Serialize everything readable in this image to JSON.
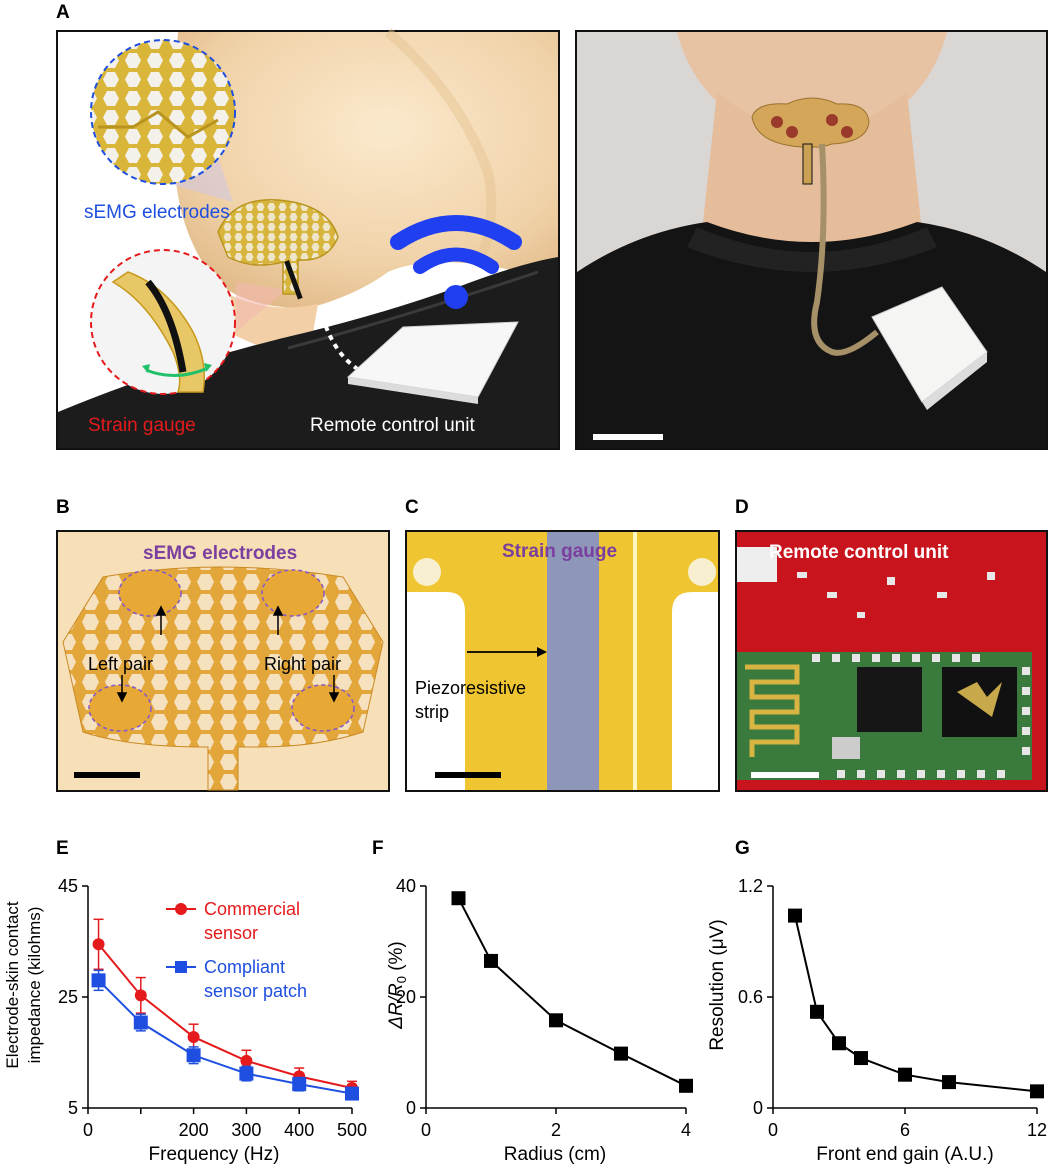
{
  "labels": {
    "a": "A",
    "b": "B",
    "c": "C",
    "d": "D",
    "e": "E",
    "f": "F",
    "g": "G"
  },
  "panel_a_left": {
    "semg": "sEMG electrodes",
    "strain": "Strain gauge",
    "remote": "Remote control unit"
  },
  "panel_b": {
    "title": "sEMG electrodes",
    "left_pair": "Left pair",
    "right_pair": "Right pair"
  },
  "panel_c": {
    "title": "Strain gauge",
    "strip_line1": "Piezoresistive",
    "strip_line2": "strip"
  },
  "panel_d": {
    "title": "Remote control unit"
  },
  "colors": {
    "red": "#e41a1c",
    "blue": "#1f4fe0",
    "purple": "#7b3fa0",
    "black": "#000000"
  },
  "chart_data": [
    {
      "type": "line",
      "x": [
        20,
        100,
        200,
        300,
        400,
        500
      ],
      "series": [
        {
          "name": "Commercial sensor",
          "name_line1": "Commercial",
          "name_line2": "sensor",
          "color": "#e41a1c",
          "marker": "circle",
          "values": [
            34.5,
            25.3,
            17.8,
            13.5,
            10.7,
            8.6
          ],
          "errors": [
            4.5,
            3.2,
            2.3,
            1.9,
            1.5,
            1.2
          ]
        },
        {
          "name": "Compliant sensor patch",
          "name_line1": "Compliant",
          "name_line2": "sensor patch",
          "color": "#1f4fe0",
          "marker": "square",
          "values": [
            28.0,
            20.4,
            14.5,
            11.2,
            9.3,
            7.6
          ],
          "errors": [
            1.8,
            1.5,
            1.5,
            1.3,
            1.2,
            1.0
          ]
        }
      ],
      "xlabel": "Frequency (Hz)",
      "ylabel_line1": "Electrode-skin contact",
      "ylabel_line2": "impedance (kilohms)",
      "xlim": [
        0,
        500
      ],
      "ylim": [
        5,
        45
      ],
      "xticks": [
        0,
        100,
        200,
        300,
        400,
        500
      ],
      "xtick_labels": [
        "0",
        "",
        "200",
        "300",
        "400",
        "500"
      ],
      "yticks": [
        5,
        25,
        45
      ],
      "ytick_labels": [
        "5",
        "25",
        "45"
      ],
      "grid": false,
      "legend": "top-right"
    },
    {
      "type": "line",
      "x": [
        0.5,
        1,
        2,
        3,
        4
      ],
      "series": [
        {
          "color": "#000000",
          "marker": "square",
          "values": [
            37.8,
            26.5,
            15.8,
            9.8,
            4.0
          ]
        }
      ],
      "xlabel": "Radius (cm)",
      "ylabel_main": "ΔR/R",
      "ylabel_sub": "0",
      "ylabel_suffix": " (%)",
      "xlim": [
        0,
        4
      ],
      "ylim": [
        0,
        40
      ],
      "xticks": [
        0,
        2,
        4
      ],
      "xtick_labels": [
        "0",
        "2",
        "4"
      ],
      "yticks": [
        0,
        20,
        40
      ],
      "ytick_labels": [
        "0",
        "20",
        "40"
      ],
      "grid": false
    },
    {
      "type": "line",
      "x": [
        1,
        2,
        3,
        4,
        6,
        8,
        12
      ],
      "series": [
        {
          "color": "#000000",
          "marker": "square",
          "values": [
            1.04,
            0.52,
            0.35,
            0.27,
            0.18,
            0.14,
            0.09
          ]
        }
      ],
      "xlabel": "Front end gain (A.U.)",
      "ylabel": "Resolution (μV)",
      "xlim": [
        0,
        12
      ],
      "ylim": [
        0,
        1.2
      ],
      "xticks": [
        0,
        6,
        12
      ],
      "xtick_labels": [
        "0",
        "6",
        "12"
      ],
      "yticks": [
        0,
        0.6,
        1.2
      ],
      "ytick_labels": [
        "0",
        "0.6",
        "1.2"
      ],
      "grid": false
    }
  ]
}
